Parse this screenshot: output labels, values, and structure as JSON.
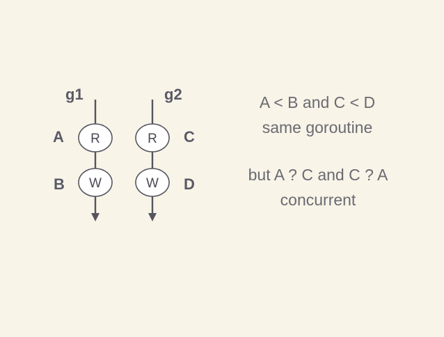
{
  "goroutines": [
    {
      "name": "g1",
      "read_op": "A",
      "write_op": "B",
      "read_node": "R",
      "write_node": "W"
    },
    {
      "name": "g2",
      "read_op": "C",
      "write_op": "D",
      "read_node": "R",
      "write_node": "W"
    }
  ],
  "notes": {
    "ordering_line1": "A < B and  C < D",
    "ordering_line2": "same goroutine",
    "concurrency_line1": "but A ? C  and C ? A",
    "concurrency_line2": "concurrent"
  },
  "colors": {
    "background": "#f8f4e8",
    "ink": "#55555f",
    "text": "#6a6a72"
  }
}
